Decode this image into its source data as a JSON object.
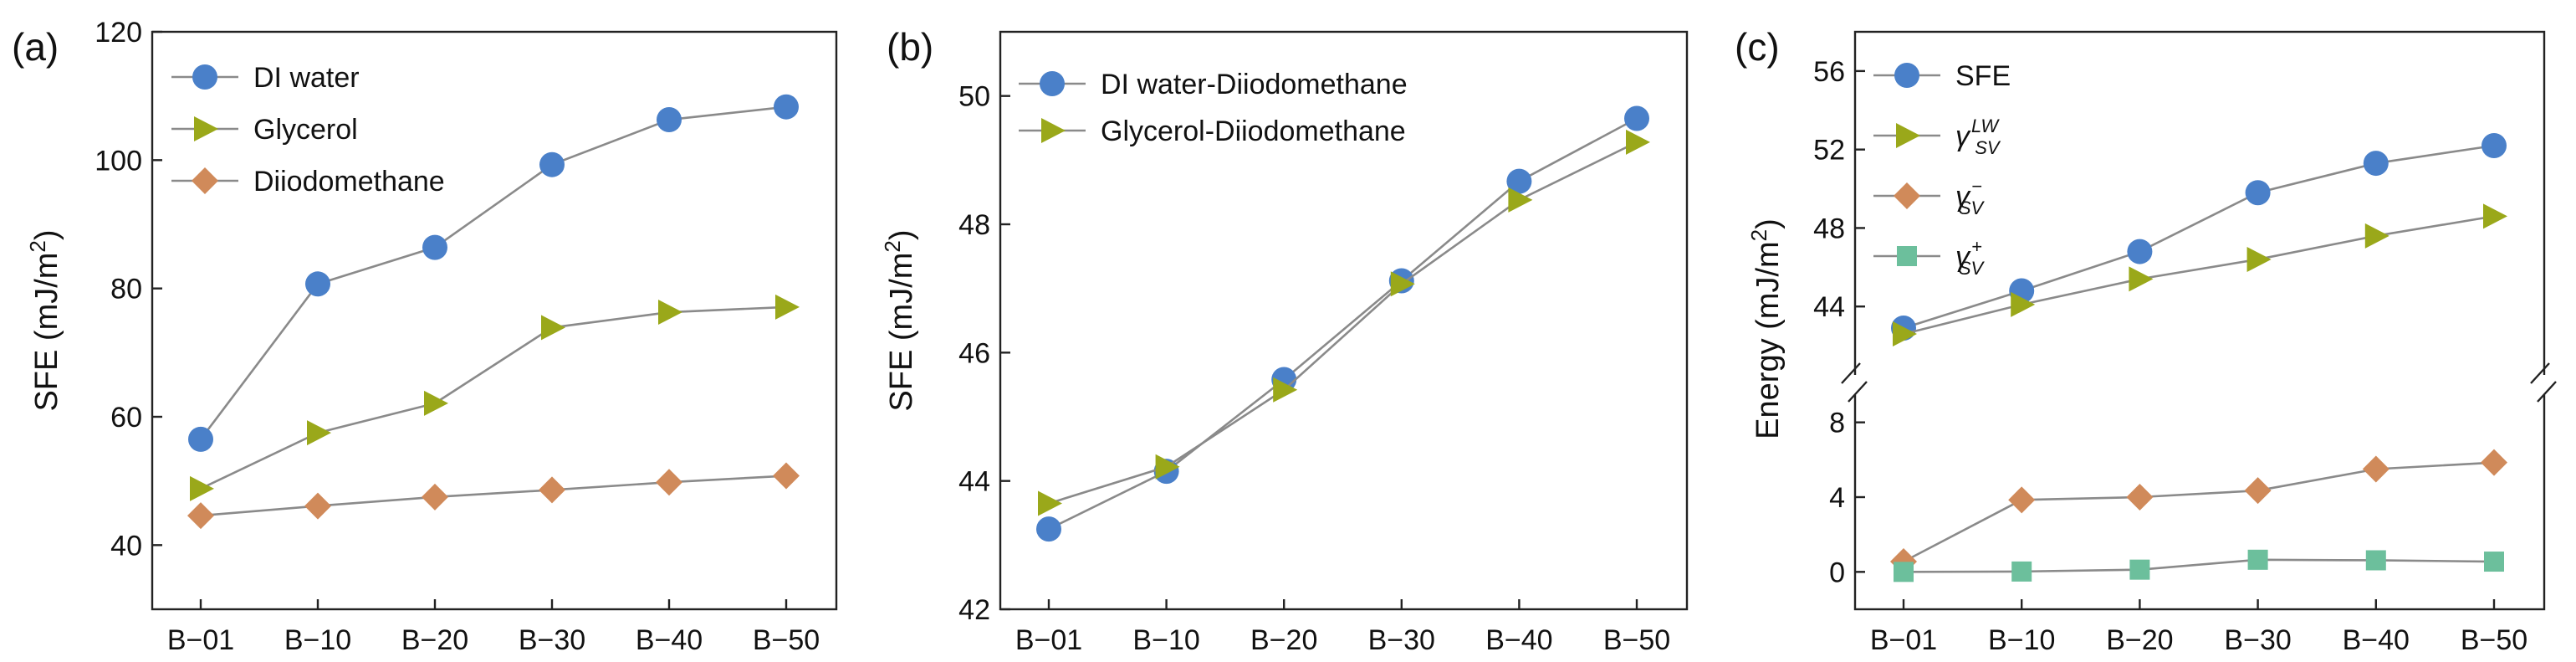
{
  "colors": {
    "blue": "#4a80c9",
    "olive": "#9aa81a",
    "orange": "#d08a5a",
    "teal": "#6cbf9c",
    "line": "#8a8a8a"
  },
  "chart_data": [
    {
      "panel": "(a)",
      "type": "line",
      "categories": [
        "B−01",
        "B−10",
        "B−20",
        "B−30",
        "B−40",
        "B−50"
      ],
      "ylabel": "SFE (mJ/m²)",
      "ylim": [
        30,
        120
      ],
      "yticks": [
        "40",
        "60",
        "80",
        "100",
        "120"
      ],
      "legend_position": "top-left",
      "series": [
        {
          "name": "DI water",
          "marker": "circle",
          "color": "#4a80c9",
          "values": [
            56.5,
            80.7,
            86.4,
            99.3,
            106.3,
            108.3
          ]
        },
        {
          "name": "Glycerol",
          "marker": "triangle",
          "color": "#9aa81a",
          "values": [
            48.8,
            57.5,
            62.1,
            73.9,
            76.3,
            77.1
          ]
        },
        {
          "name": "Diiodomethane",
          "marker": "diamond",
          "color": "#d08a5a",
          "values": [
            44.6,
            46.1,
            47.5,
            48.6,
            49.8,
            50.8
          ]
        }
      ]
    },
    {
      "panel": "(b)",
      "type": "line",
      "categories": [
        "B−01",
        "B−10",
        "B−20",
        "B−30",
        "B−40",
        "B−50"
      ],
      "ylabel": "SFE (mJ/m²)",
      "ylim": [
        42,
        51
      ],
      "yticks": [
        "42",
        "44",
        "46",
        "48",
        "50"
      ],
      "legend_position": "top-left",
      "series": [
        {
          "name": "DI water-Diiodomethane",
          "marker": "circle",
          "color": "#4a80c9",
          "values": [
            43.25,
            44.15,
            45.58,
            47.12,
            48.67,
            49.65
          ]
        },
        {
          "name": "Glycerol-Diiodomethane",
          "marker": "triangle",
          "color": "#9aa81a",
          "values": [
            43.65,
            44.22,
            45.42,
            47.07,
            48.38,
            49.28
          ]
        }
      ]
    },
    {
      "panel": "(c)",
      "type": "line",
      "categories": [
        "B−01",
        "B−10",
        "B−20",
        "B−30",
        "B−40",
        "B−50"
      ],
      "ylabel": "Energy (mJ/m²)",
      "broken_axis": true,
      "upper_ylim": [
        40,
        58
      ],
      "upper_yticks": [
        "44",
        "48",
        "52",
        "56"
      ],
      "lower_ylim": [
        -2,
        10
      ],
      "lower_yticks": [
        "0",
        "4",
        "8"
      ],
      "legend_position": "top-left",
      "series": [
        {
          "name": "SFE",
          "marker": "circle",
          "color": "#4a80c9",
          "axis": "upper",
          "values": [
            42.9,
            44.8,
            46.8,
            49.8,
            51.3,
            52.2
          ]
        },
        {
          "name": "γSV LW",
          "label": {
            "base": "γ",
            "sup": "LW",
            "sub": "SV"
          },
          "marker": "triangle",
          "color": "#9aa81a",
          "axis": "upper",
          "values": [
            42.6,
            44.1,
            45.4,
            46.4,
            47.6,
            48.6
          ]
        },
        {
          "name": "γSV −",
          "label": {
            "base": "γ",
            "sup": "−",
            "sub": "SV"
          },
          "marker": "diamond",
          "color": "#d08a5a",
          "axis": "lower",
          "values": [
            0.55,
            3.85,
            4.0,
            4.35,
            5.5,
            5.85
          ]
        },
        {
          "name": "γSV +",
          "label": {
            "base": "γ",
            "sup": "+",
            "sub": "SV"
          },
          "marker": "square",
          "color": "#6cbf9c",
          "axis": "lower",
          "values": [
            0.0,
            0.02,
            0.12,
            0.65,
            0.62,
            0.55
          ]
        }
      ]
    }
  ]
}
